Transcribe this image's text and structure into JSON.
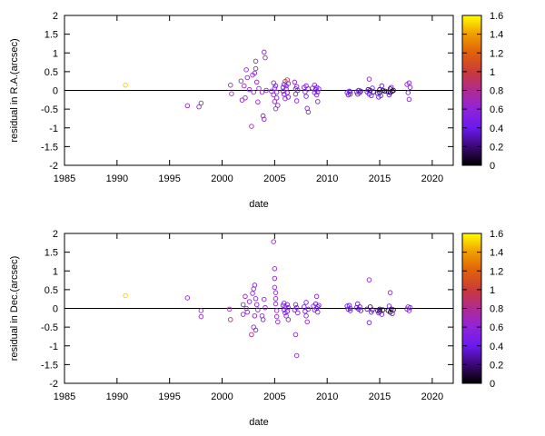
{
  "chart_data": [
    {
      "type": "scatter",
      "ylabel": "residual in R.A.(arcsec)",
      "xlabel": "date",
      "xlim": [
        1985,
        2022
      ],
      "ylim": [
        -2,
        2
      ],
      "xticks": [
        1985,
        1990,
        1995,
        2000,
        2005,
        2010,
        2015,
        2020
      ],
      "yticks": [
        -2,
        -1.5,
        -1,
        -0.5,
        0,
        0.5,
        1,
        1.5,
        2
      ],
      "grid": false,
      "marker": "open-circle",
      "zero_line": true,
      "colorbar": {
        "range": [
          0,
          1.6
        ],
        "ticks": [
          0,
          0.2,
          0.4,
          0.6,
          0.8,
          1,
          1.2,
          1.4,
          1.6
        ],
        "placement": "right"
      },
      "points": [
        {
          "x": 1990.8,
          "y": 0.14,
          "c": 1.5
        },
        {
          "x": 1996.7,
          "y": -0.41,
          "c": 0.6
        },
        {
          "x": 1997.8,
          "y": -0.44,
          "c": 0.6
        },
        {
          "x": 1998.0,
          "y": -0.34,
          "c": 0.6
        },
        {
          "x": 2000.8,
          "y": 0.14,
          "c": 0.7
        },
        {
          "x": 2000.9,
          "y": -0.09,
          "c": 0.7
        },
        {
          "x": 2001.8,
          "y": 0.25,
          "c": 0.6
        },
        {
          "x": 2001.9,
          "y": -0.26,
          "c": 0.6
        },
        {
          "x": 2002.1,
          "y": 0.12,
          "c": 0.7
        },
        {
          "x": 2002.2,
          "y": -0.2,
          "c": 0.6
        },
        {
          "x": 2002.3,
          "y": 0.55,
          "c": 0.6
        },
        {
          "x": 2002.4,
          "y": 0.34,
          "c": 0.6
        },
        {
          "x": 2002.6,
          "y": 0.02,
          "c": 0.6
        },
        {
          "x": 2002.8,
          "y": -0.96,
          "c": 0.7
        },
        {
          "x": 2002.9,
          "y": 0.41,
          "c": 0.6
        },
        {
          "x": 2003.0,
          "y": -0.05,
          "c": 0.6
        },
        {
          "x": 2003.1,
          "y": 0.46,
          "c": 0.6
        },
        {
          "x": 2003.2,
          "y": 0.78,
          "c": 0.6
        },
        {
          "x": 2003.2,
          "y": 0.58,
          "c": 0.6
        },
        {
          "x": 2003.3,
          "y": 0.22,
          "c": 0.6
        },
        {
          "x": 2003.4,
          "y": -0.31,
          "c": 0.6
        },
        {
          "x": 2003.5,
          "y": 0.05,
          "c": 0.6
        },
        {
          "x": 2003.8,
          "y": -0.05,
          "c": 0.6
        },
        {
          "x": 2003.9,
          "y": -0.68,
          "c": 0.6
        },
        {
          "x": 2004.0,
          "y": -0.77,
          "c": 0.6
        },
        {
          "x": 2004.0,
          "y": 1.02,
          "c": 0.6
        },
        {
          "x": 2004.1,
          "y": 0.87,
          "c": 0.6
        },
        {
          "x": 2004.2,
          "y": 0.0,
          "c": 0.6
        },
        {
          "x": 2004.7,
          "y": -0.02,
          "c": 0.6
        },
        {
          "x": 2004.9,
          "y": 0.2,
          "c": 0.6
        },
        {
          "x": 2004.9,
          "y": -0.12,
          "c": 0.6
        },
        {
          "x": 2005.0,
          "y": 0.06,
          "c": 0.5
        },
        {
          "x": 2005.0,
          "y": -0.3,
          "c": 0.6
        },
        {
          "x": 2005.1,
          "y": -0.49,
          "c": 0.6
        },
        {
          "x": 2005.1,
          "y": 0.12,
          "c": 0.5
        },
        {
          "x": 2005.2,
          "y": -0.05,
          "c": 0.5
        },
        {
          "x": 2005.2,
          "y": -0.2,
          "c": 0.6
        },
        {
          "x": 2005.3,
          "y": -0.4,
          "c": 0.6
        },
        {
          "x": 2005.8,
          "y": 0.08,
          "c": 0.5
        },
        {
          "x": 2005.8,
          "y": -0.02,
          "c": 0.5
        },
        {
          "x": 2005.9,
          "y": 0.16,
          "c": 0.5
        },
        {
          "x": 2005.9,
          "y": -0.1,
          "c": 0.5
        },
        {
          "x": 2006.0,
          "y": 0.24,
          "c": 0.9
        },
        {
          "x": 2006.0,
          "y": -0.22,
          "c": 0.6
        },
        {
          "x": 2006.1,
          "y": 0.04,
          "c": 0.5
        },
        {
          "x": 2006.1,
          "y": 0.12,
          "c": 0.5
        },
        {
          "x": 2006.2,
          "y": 0.28,
          "c": 1.0
        },
        {
          "x": 2006.2,
          "y": -0.06,
          "c": 0.5
        },
        {
          "x": 2006.3,
          "y": 0.18,
          "c": 0.5
        },
        {
          "x": 2006.3,
          "y": -0.18,
          "c": 0.5
        },
        {
          "x": 2006.9,
          "y": 0.22,
          "c": 0.6
        },
        {
          "x": 2007.0,
          "y": 0.04,
          "c": 0.5
        },
        {
          "x": 2007.0,
          "y": -0.1,
          "c": 0.5
        },
        {
          "x": 2007.1,
          "y": 0.1,
          "c": 0.5
        },
        {
          "x": 2007.1,
          "y": -0.28,
          "c": 0.6
        },
        {
          "x": 2007.2,
          "y": 0.0,
          "c": 0.5
        },
        {
          "x": 2007.8,
          "y": 0.08,
          "c": 0.5
        },
        {
          "x": 2007.9,
          "y": -0.04,
          "c": 0.5
        },
        {
          "x": 2008.0,
          "y": 0.12,
          "c": 0.5
        },
        {
          "x": 2008.0,
          "y": -0.16,
          "c": 0.5
        },
        {
          "x": 2008.1,
          "y": -0.48,
          "c": 0.6
        },
        {
          "x": 2008.2,
          "y": -0.58,
          "c": 0.6
        },
        {
          "x": 2008.2,
          "y": 0.04,
          "c": 0.5
        },
        {
          "x": 2008.6,
          "y": 0.06,
          "c": 0.5
        },
        {
          "x": 2008.8,
          "y": 0.14,
          "c": 0.5
        },
        {
          "x": 2008.8,
          "y": -0.06,
          "c": 0.5
        },
        {
          "x": 2008.9,
          "y": 0.02,
          "c": 0.5
        },
        {
          "x": 2009.0,
          "y": -0.12,
          "c": 0.5
        },
        {
          "x": 2009.0,
          "y": 0.08,
          "c": 0.5
        },
        {
          "x": 2009.1,
          "y": -0.3,
          "c": 0.5
        },
        {
          "x": 2009.1,
          "y": -0.04,
          "c": 0.5
        },
        {
          "x": 2009.2,
          "y": 0.04,
          "c": 0.5
        },
        {
          "x": 2011.9,
          "y": -0.06,
          "c": 0.4
        },
        {
          "x": 2012.0,
          "y": -0.12,
          "c": 0.4
        },
        {
          "x": 2012.1,
          "y": -0.02,
          "c": 0.4
        },
        {
          "x": 2012.2,
          "y": -0.1,
          "c": 0.4
        },
        {
          "x": 2012.2,
          "y": -0.04,
          "c": 0.4
        },
        {
          "x": 2012.8,
          "y": -0.04,
          "c": 0.4
        },
        {
          "x": 2012.9,
          "y": -0.1,
          "c": 0.4
        },
        {
          "x": 2013.0,
          "y": 0.0,
          "c": 0.3
        },
        {
          "x": 2013.1,
          "y": -0.06,
          "c": 0.3
        },
        {
          "x": 2013.2,
          "y": -0.02,
          "c": 0.3
        },
        {
          "x": 2013.8,
          "y": -0.04,
          "c": 0.3
        },
        {
          "x": 2013.9,
          "y": 0.02,
          "c": 0.2
        },
        {
          "x": 2014.0,
          "y": -0.1,
          "c": 0.4
        },
        {
          "x": 2014.0,
          "y": 0.3,
          "c": 0.6
        },
        {
          "x": 2014.1,
          "y": 0.0,
          "c": 0.2
        },
        {
          "x": 2014.2,
          "y": -0.14,
          "c": 0.4
        },
        {
          "x": 2014.3,
          "y": 0.06,
          "c": 0.4
        },
        {
          "x": 2014.4,
          "y": -0.04,
          "c": 0.2
        },
        {
          "x": 2014.8,
          "y": -0.08,
          "c": 0.3
        },
        {
          "x": 2014.9,
          "y": -0.18,
          "c": 0.4
        },
        {
          "x": 2015.0,
          "y": 0.02,
          "c": 0.1
        },
        {
          "x": 2015.0,
          "y": -0.06,
          "c": 0.1
        },
        {
          "x": 2015.1,
          "y": -0.14,
          "c": 0.4
        },
        {
          "x": 2015.2,
          "y": 0.12,
          "c": 0.4
        },
        {
          "x": 2015.3,
          "y": 0.0,
          "c": 0.1
        },
        {
          "x": 2015.5,
          "y": -0.02,
          "c": 0.1
        },
        {
          "x": 2015.8,
          "y": -0.04,
          "c": 0.1
        },
        {
          "x": 2015.9,
          "y": -0.12,
          "c": 0.4
        },
        {
          "x": 2016.0,
          "y": 0.04,
          "c": 0.1
        },
        {
          "x": 2016.0,
          "y": -0.06,
          "c": 0.1
        },
        {
          "x": 2016.1,
          "y": 0.08,
          "c": 0.4
        },
        {
          "x": 2016.2,
          "y": -0.02,
          "c": 0.1
        },
        {
          "x": 2016.3,
          "y": 0.0,
          "c": 0.1
        },
        {
          "x": 2017.6,
          "y": 0.16,
          "c": 0.6
        },
        {
          "x": 2017.7,
          "y": -0.06,
          "c": 0.4
        },
        {
          "x": 2017.8,
          "y": 0.2,
          "c": 0.6
        },
        {
          "x": 2017.8,
          "y": -0.24,
          "c": 0.5
        },
        {
          "x": 2017.9,
          "y": 0.08,
          "c": 0.5
        }
      ]
    },
    {
      "type": "scatter",
      "ylabel": "residual in Dec.(arcsec)",
      "xlabel": "date",
      "xlim": [
        1985,
        2022
      ],
      "ylim": [
        -2,
        2
      ],
      "xticks": [
        1985,
        1990,
        1995,
        2000,
        2005,
        2010,
        2015,
        2020
      ],
      "yticks": [
        -2,
        -1.5,
        -1,
        -0.5,
        0,
        0.5,
        1,
        1.5,
        2
      ],
      "grid": false,
      "marker": "open-circle",
      "zero_line": true,
      "colorbar": {
        "range": [
          0,
          1.6
        ],
        "ticks": [
          0,
          0.2,
          0.4,
          0.6,
          0.8,
          1,
          1.2,
          1.4,
          1.6
        ],
        "placement": "right"
      },
      "points": [
        {
          "x": 1990.8,
          "y": 0.34,
          "c": 1.5
        },
        {
          "x": 1996.7,
          "y": 0.28,
          "c": 0.6
        },
        {
          "x": 1998.0,
          "y": -0.06,
          "c": 0.6
        },
        {
          "x": 1998.0,
          "y": -0.22,
          "c": 0.6
        },
        {
          "x": 2000.7,
          "y": -0.02,
          "c": 0.7
        },
        {
          "x": 2000.8,
          "y": -0.3,
          "c": 0.9
        },
        {
          "x": 2002.0,
          "y": 0.1,
          "c": 0.6
        },
        {
          "x": 2002.0,
          "y": -0.16,
          "c": 0.6
        },
        {
          "x": 2002.2,
          "y": 0.32,
          "c": 0.7
        },
        {
          "x": 2002.3,
          "y": 0.0,
          "c": 0.6
        },
        {
          "x": 2002.4,
          "y": -0.1,
          "c": 0.6
        },
        {
          "x": 2002.6,
          "y": 0.18,
          "c": 0.6
        },
        {
          "x": 2002.8,
          "y": -0.7,
          "c": 0.8
        },
        {
          "x": 2002.9,
          "y": 0.4,
          "c": 0.6
        },
        {
          "x": 2003.0,
          "y": 0.52,
          "c": 0.6
        },
        {
          "x": 2003.0,
          "y": -0.5,
          "c": 0.6
        },
        {
          "x": 2003.1,
          "y": 0.62,
          "c": 0.6
        },
        {
          "x": 2003.1,
          "y": -0.2,
          "c": 0.6
        },
        {
          "x": 2003.2,
          "y": 0.26,
          "c": 0.6
        },
        {
          "x": 2003.2,
          "y": -0.58,
          "c": 0.6
        },
        {
          "x": 2003.3,
          "y": 0.1,
          "c": 0.6
        },
        {
          "x": 2003.4,
          "y": -0.04,
          "c": 0.6
        },
        {
          "x": 2003.8,
          "y": -0.2,
          "c": 0.6
        },
        {
          "x": 2003.9,
          "y": -0.3,
          "c": 0.6
        },
        {
          "x": 2004.0,
          "y": 0.24,
          "c": 0.6
        },
        {
          "x": 2004.1,
          "y": 0.02,
          "c": 0.6
        },
        {
          "x": 2004.9,
          "y": 1.78,
          "c": 0.6
        },
        {
          "x": 2005.0,
          "y": 1.06,
          "c": 0.6
        },
        {
          "x": 2005.0,
          "y": 0.8,
          "c": 0.6
        },
        {
          "x": 2005.0,
          "y": 0.56,
          "c": 0.6
        },
        {
          "x": 2005.1,
          "y": 0.42,
          "c": 0.6
        },
        {
          "x": 2005.1,
          "y": 0.26,
          "c": 0.6
        },
        {
          "x": 2005.1,
          "y": 0.12,
          "c": 0.6
        },
        {
          "x": 2005.2,
          "y": -0.06,
          "c": 0.6
        },
        {
          "x": 2005.2,
          "y": -0.22,
          "c": 0.6
        },
        {
          "x": 2005.3,
          "y": -0.36,
          "c": 0.6
        },
        {
          "x": 2005.8,
          "y": 0.08,
          "c": 0.5
        },
        {
          "x": 2005.9,
          "y": -0.04,
          "c": 0.5
        },
        {
          "x": 2005.9,
          "y": 0.14,
          "c": 0.5
        },
        {
          "x": 2006.0,
          "y": -0.12,
          "c": 0.5
        },
        {
          "x": 2006.0,
          "y": 0.04,
          "c": 0.5
        },
        {
          "x": 2006.1,
          "y": -0.2,
          "c": 0.6
        },
        {
          "x": 2006.2,
          "y": 0.1,
          "c": 0.5
        },
        {
          "x": 2006.2,
          "y": -0.08,
          "c": 0.5
        },
        {
          "x": 2006.3,
          "y": 0.02,
          "c": 0.5
        },
        {
          "x": 2006.3,
          "y": -0.3,
          "c": 0.6
        },
        {
          "x": 2006.9,
          "y": -0.04,
          "c": 0.5
        },
        {
          "x": 2007.0,
          "y": 0.1,
          "c": 0.5
        },
        {
          "x": 2007.0,
          "y": -0.7,
          "c": 0.6
        },
        {
          "x": 2007.1,
          "y": -1.26,
          "c": 0.6
        },
        {
          "x": 2007.1,
          "y": 0.02,
          "c": 0.5
        },
        {
          "x": 2007.2,
          "y": -0.12,
          "c": 0.5
        },
        {
          "x": 2007.8,
          "y": 0.04,
          "c": 0.5
        },
        {
          "x": 2007.9,
          "y": -0.08,
          "c": 0.5
        },
        {
          "x": 2008.0,
          "y": 0.16,
          "c": 0.5
        },
        {
          "x": 2008.0,
          "y": -0.2,
          "c": 0.6
        },
        {
          "x": 2008.1,
          "y": -0.36,
          "c": 0.6
        },
        {
          "x": 2008.2,
          "y": -0.02,
          "c": 0.5
        },
        {
          "x": 2008.7,
          "y": 0.06,
          "c": 0.5
        },
        {
          "x": 2008.8,
          "y": -0.04,
          "c": 0.5
        },
        {
          "x": 2008.9,
          "y": 0.12,
          "c": 0.5
        },
        {
          "x": 2009.0,
          "y": 0.32,
          "c": 0.6
        },
        {
          "x": 2009.0,
          "y": 0.0,
          "c": 0.5
        },
        {
          "x": 2009.1,
          "y": -0.1,
          "c": 0.5
        },
        {
          "x": 2009.1,
          "y": 0.04,
          "c": 0.5
        },
        {
          "x": 2009.2,
          "y": 0.08,
          "c": 0.5
        },
        {
          "x": 2011.9,
          "y": 0.06,
          "c": 0.4
        },
        {
          "x": 2012.0,
          "y": -0.02,
          "c": 0.4
        },
        {
          "x": 2012.1,
          "y": 0.08,
          "c": 0.4
        },
        {
          "x": 2012.2,
          "y": 0.0,
          "c": 0.4
        },
        {
          "x": 2012.2,
          "y": -0.06,
          "c": 0.4
        },
        {
          "x": 2012.8,
          "y": 0.02,
          "c": 0.4
        },
        {
          "x": 2012.9,
          "y": 0.12,
          "c": 0.4
        },
        {
          "x": 2013.0,
          "y": -0.02,
          "c": 0.3
        },
        {
          "x": 2013.1,
          "y": 0.04,
          "c": 0.3
        },
        {
          "x": 2013.2,
          "y": -0.06,
          "c": 0.3
        },
        {
          "x": 2013.8,
          "y": -0.02,
          "c": 0.3
        },
        {
          "x": 2014.0,
          "y": 0.76,
          "c": 0.6
        },
        {
          "x": 2014.0,
          "y": -0.38,
          "c": 0.5
        },
        {
          "x": 2014.1,
          "y": 0.04,
          "c": 0.2
        },
        {
          "x": 2014.2,
          "y": -0.1,
          "c": 0.4
        },
        {
          "x": 2014.3,
          "y": -0.04,
          "c": 0.2
        },
        {
          "x": 2014.8,
          "y": -0.06,
          "c": 0.3
        },
        {
          "x": 2014.9,
          "y": -0.12,
          "c": 0.4
        },
        {
          "x": 2015.0,
          "y": -0.02,
          "c": 0.1
        },
        {
          "x": 2015.0,
          "y": -0.08,
          "c": 0.1
        },
        {
          "x": 2015.2,
          "y": -0.16,
          "c": 0.4
        },
        {
          "x": 2015.3,
          "y": -0.04,
          "c": 0.1
        },
        {
          "x": 2015.8,
          "y": -0.06,
          "c": 0.1
        },
        {
          "x": 2015.9,
          "y": 0.06,
          "c": 0.4
        },
        {
          "x": 2016.0,
          "y": 0.42,
          "c": 0.6
        },
        {
          "x": 2016.0,
          "y": -0.1,
          "c": 0.1
        },
        {
          "x": 2016.1,
          "y": -0.02,
          "c": 0.1
        },
        {
          "x": 2016.2,
          "y": -0.14,
          "c": 0.4
        },
        {
          "x": 2016.3,
          "y": -0.04,
          "c": 0.1
        },
        {
          "x": 2017.6,
          "y": -0.02,
          "c": 0.5
        },
        {
          "x": 2017.7,
          "y": 0.04,
          "c": 0.6
        },
        {
          "x": 2017.8,
          "y": -0.06,
          "c": 0.5
        },
        {
          "x": 2017.9,
          "y": 0.02,
          "c": 0.5
        }
      ]
    }
  ]
}
